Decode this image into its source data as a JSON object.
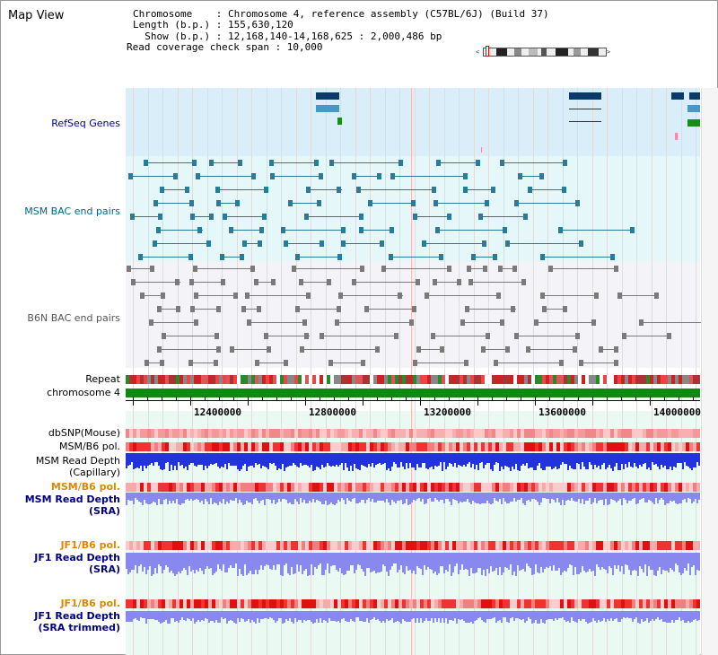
{
  "header": {
    "title": "Map View",
    "chromosome_label": "Chromosome    : Chromosome 4, reference assembly (C57BL/6J) (Build 37)",
    "length_label": "Length (b.p.) : 155,630,120",
    "show_label": "  Show (b.p.) : 12,168,140-14,168,625 : 2,000,486 bp",
    "coverage_label": "Read coverage check span : 10,000"
  },
  "tracks": {
    "refseq": "RefSeq Genes",
    "msm_bac": "MSM BAC end pairs",
    "b6n_bac": "B6N BAC end pairs",
    "repeat": "Repeat",
    "chromosome": "chromosome 4",
    "dbsnp": "dbSNP(Mouse)",
    "msm_b6_pol_1": "MSM/B6 pol.",
    "msm_read_depth_cap": "MSM Read Depth\n(Capillary)",
    "msm_b6_pol_2": "MSM/B6 pol.",
    "msm_read_depth_sra": "MSM Read Depth\n(SRA)",
    "jf1_b6_pol_1": "JF1/B6 pol.",
    "jf1_read_depth_sra": "JF1 Read Depth\n(SRA)",
    "jf1_b6_pol_2": "JF1/B6 pol.",
    "jf1_read_depth_trim": "JF1 Read Depth\n(SRA trimmed)"
  },
  "axis": {
    "ticks": [
      "12400000",
      "12800000",
      "13200000",
      "13600000",
      "14000000"
    ]
  },
  "colors": {
    "refseq_bg": "#d9eef9",
    "msm_bg": "#e6f7fa",
    "b6n_bg": "#f4f4f8",
    "lower_bg": "#eafaf3",
    "gene_dark": "#0a3a6a",
    "gene_mid": "#4a96c4",
    "gene_green": "#1a8a1a",
    "msm_pair": "#2a7a9a",
    "b6n_pair": "#7a7a7a",
    "chrom_green": "#118811",
    "depth_blue": "#2233dd",
    "depth_light": "#8888ee",
    "label_navy": "#000080",
    "label_teal": "#006688",
    "label_orange": "#dd8800"
  }
}
